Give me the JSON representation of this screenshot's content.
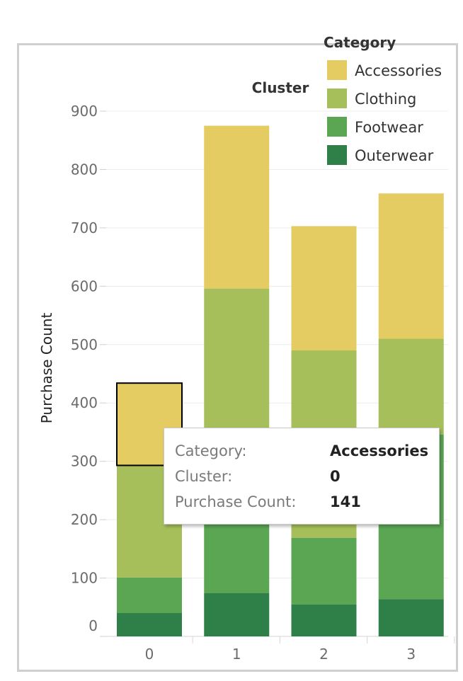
{
  "chart_data": {
    "type": "bar",
    "stacked": true,
    "xlabel": "Cluster",
    "ylabel": "Purchase Count",
    "ylim": [
      0,
      900
    ],
    "y_ticks": [
      0,
      100,
      200,
      300,
      400,
      500,
      600,
      700,
      800,
      900
    ],
    "categories": [
      "0",
      "1",
      "2",
      "3"
    ],
    "legend_title": "Category",
    "legend_position": "top-right",
    "grid": true,
    "series": [
      {
        "name": "Outerwear",
        "color": "#2e8048",
        "values": [
          40,
          74,
          55,
          64
        ]
      },
      {
        "name": "Footwear",
        "color": "#5ba653",
        "values": [
          61,
          276,
          114,
          282
        ]
      },
      {
        "name": "Clothing",
        "color": "#a6bf5a",
        "values": [
          192,
          246,
          321,
          164
        ]
      },
      {
        "name": "Accessories",
        "color": "#e4cb62",
        "values": [
          141,
          279,
          213,
          249
        ]
      }
    ],
    "legend_order": [
      "Accessories",
      "Clothing",
      "Footwear",
      "Outerwear"
    ],
    "highlight": {
      "category": "0",
      "series": "Accessories"
    }
  },
  "tooltip": {
    "rows": [
      {
        "key": "Category:",
        "value": "Accessories"
      },
      {
        "key": "Cluster:",
        "value": "0"
      },
      {
        "key": "Purchase Count:",
        "value": "141"
      }
    ]
  }
}
